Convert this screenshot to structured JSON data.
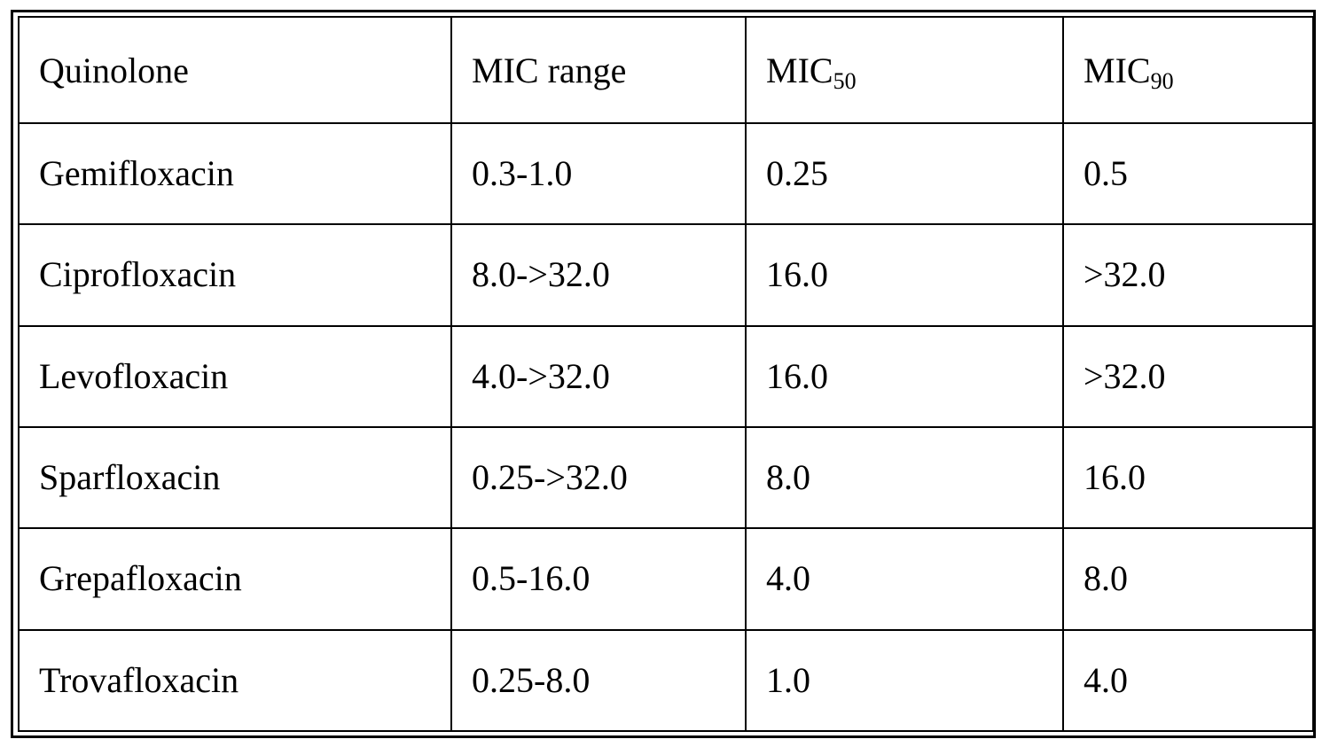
{
  "table": {
    "header": {
      "quinolone": "Quinolone",
      "mic_range": "MIC range",
      "mic50_base": "MIC",
      "mic50_sub": "50",
      "mic90_base": "MIC",
      "mic90_sub": "90"
    },
    "rows": [
      {
        "quinolone": "Gemifloxacin",
        "mic_range": "0.3-1.0",
        "mic50": "0.25",
        "mic90": "0.5"
      },
      {
        "quinolone": "Ciprofloxacin",
        "mic_range": "8.0->32.0",
        "mic50": "16.0",
        "mic90": ">32.0"
      },
      {
        "quinolone": "Levofloxacin",
        "mic_range": "4.0->32.0",
        "mic50": "16.0",
        "mic90": ">32.0"
      },
      {
        "quinolone": "Sparfloxacin",
        "mic_range": "0.25->32.0",
        "mic50": "8.0",
        "mic90": "16.0"
      },
      {
        "quinolone": "Grepafloxacin",
        "mic_range": "0.5-16.0",
        "mic50": "4.0",
        "mic90": "8.0"
      },
      {
        "quinolone": "Trovafloxacin",
        "mic_range": "0.25-8.0",
        "mic50": "1.0",
        "mic90": "4.0"
      }
    ]
  }
}
